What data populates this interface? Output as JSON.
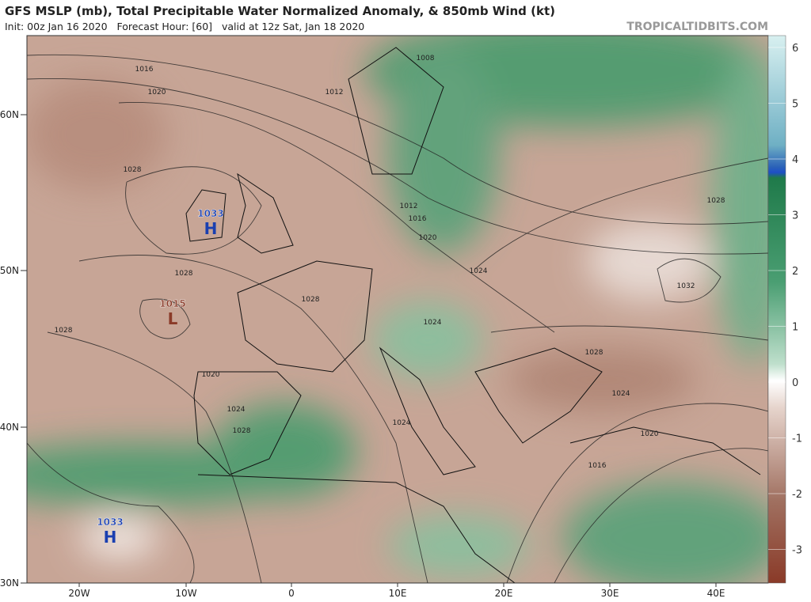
{
  "header": {
    "title": "GFS MSLP (mb), Total Precipitable Water Normalized Anomaly, & 850mb Wind (kt)",
    "subtitle": "Init: 00z Jan 16 2020   Forecast Hour: [60]   valid at 12z Sat, Jan 18 2020",
    "brand": "TROPICALTIDBITS.COM"
  },
  "axes": {
    "lat_labels": [
      "60N",
      "50N",
      "40N",
      "30N"
    ],
    "lon_labels": [
      "20W",
      "10W",
      "0",
      "10E",
      "20E",
      "30E",
      "40E"
    ]
  },
  "colorbar": {
    "labels": [
      6,
      5,
      4,
      3,
      2,
      1,
      0,
      -1,
      -2,
      -3
    ]
  },
  "centers": [
    {
      "value": "1033",
      "symbol": "H"
    },
    {
      "value": "1015",
      "symbol": "L"
    },
    {
      "value": "1033",
      "symbol": "H"
    }
  ],
  "isobar_labels": [
    "1016",
    "1020",
    "1028",
    "1028",
    "1028",
    "1028",
    "1020",
    "1024",
    "1028",
    "1012",
    "1016",
    "1020",
    "1024",
    "1024",
    "1024",
    "1028",
    "1032",
    "1028",
    "1024",
    "1020",
    "1016",
    "1008",
    "1012"
  ]
}
